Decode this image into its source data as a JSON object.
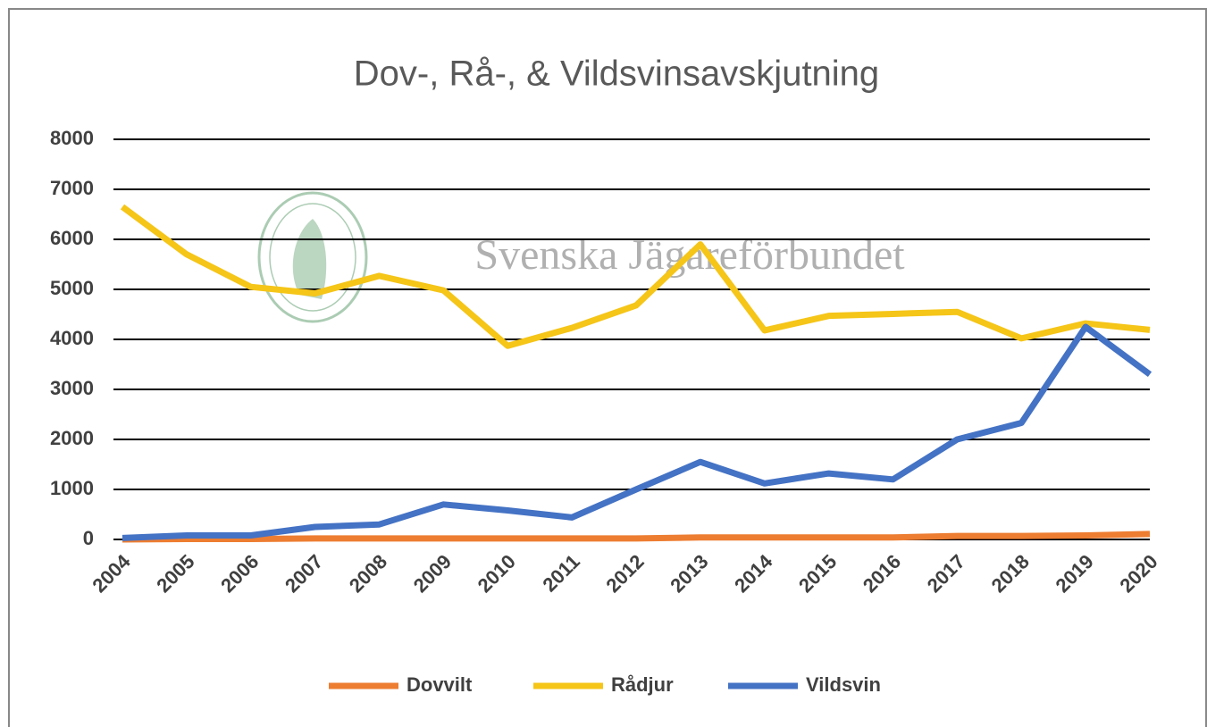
{
  "chart_data": {
    "type": "line",
    "title": "Dov-, Rå-, & Vildsvinsavskjutning",
    "watermark": "Svenska Jägareförbundet",
    "categories": [
      "2004",
      "2005",
      "2006",
      "2007",
      "2008",
      "2009",
      "2010",
      "2011",
      "2012",
      "2013",
      "2014",
      "2015",
      "2016",
      "2017",
      "2018",
      "2019",
      "2020"
    ],
    "series": [
      {
        "name": "Dovvilt",
        "color": "#ED7D31",
        "values": [
          0,
          10,
          10,
          20,
          20,
          20,
          20,
          20,
          20,
          40,
          40,
          40,
          40,
          70,
          70,
          80,
          110
        ]
      },
      {
        "name": "Rådjur",
        "color": "#F5C518",
        "values": [
          6650,
          5700,
          5050,
          4920,
          5270,
          4980,
          3870,
          4230,
          4680,
          5900,
          4180,
          4470,
          4510,
          4550,
          4020,
          4320,
          4190
        ]
      },
      {
        "name": "Vildsvin",
        "color": "#4472C4",
        "values": [
          30,
          80,
          80,
          250,
          300,
          700,
          580,
          440,
          1000,
          1550,
          1120,
          1320,
          1200,
          2000,
          2330,
          4250,
          3300
        ]
      }
    ],
    "ylim": [
      0,
      8000
    ],
    "yticks": [
      0,
      1000,
      2000,
      3000,
      4000,
      5000,
      6000,
      7000,
      8000
    ],
    "grid": true,
    "legend": "bottom"
  }
}
